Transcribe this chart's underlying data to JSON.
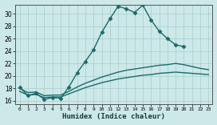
{
  "title": "",
  "xlabel": "Humidex (Indice chaleur)",
  "xlim": [
    -0.5,
    23.5
  ],
  "ylim": [
    15.5,
    31.5
  ],
  "yticks": [
    16,
    18,
    20,
    22,
    24,
    26,
    28,
    30
  ],
  "xticks": [
    0,
    1,
    2,
    3,
    4,
    5,
    6,
    7,
    8,
    9,
    10,
    11,
    12,
    13,
    14,
    15,
    16,
    17,
    18,
    19,
    20,
    21,
    22,
    23
  ],
  "background_color": "#cce8e8",
  "grid_color": "#aacccc",
  "line_color": "#1a6b6b",
  "series": [
    {
      "x": [
        0,
        1,
        2,
        3,
        4,
        5,
        6,
        7,
        8,
        9,
        10,
        11,
        12,
        13,
        14,
        15,
        16,
        17,
        18,
        19,
        20
      ],
      "y": [
        18.2,
        16.8,
        17.2,
        16.2,
        16.5,
        16.4,
        18.2,
        20.5,
        22.3,
        24.2,
        27.0,
        29.2,
        31.2,
        30.8,
        30.2,
        31.4,
        29.0,
        27.2,
        26.0,
        25.0,
        24.7
      ],
      "marker": "D",
      "markersize": 2.5,
      "linewidth": 1.0
    },
    {
      "x": [
        0,
        1,
        2,
        3,
        4,
        5,
        6,
        7,
        8,
        9,
        10,
        11,
        12,
        13,
        14,
        15,
        16,
        17,
        18,
        19,
        20,
        21,
        22,
        23
      ],
      "y": [
        18.0,
        17.3,
        17.4,
        16.8,
        16.9,
        16.9,
        17.5,
        18.2,
        18.8,
        19.3,
        19.8,
        20.2,
        20.6,
        20.9,
        21.1,
        21.3,
        21.5,
        21.7,
        21.8,
        22.0,
        21.8,
        21.5,
        21.2,
        21.0
      ],
      "marker": null,
      "markersize": 0,
      "linewidth": 1.0
    },
    {
      "x": [
        0,
        1,
        2,
        3,
        4,
        5,
        6,
        7,
        8,
        9,
        10,
        11,
        12,
        13,
        14,
        15,
        16,
        17,
        18,
        19,
        20,
        21,
        22,
        23
      ],
      "y": [
        17.5,
        16.9,
        17.0,
        16.5,
        16.6,
        16.6,
        17.1,
        17.6,
        18.1,
        18.5,
        18.9,
        19.2,
        19.5,
        19.7,
        19.9,
        20.1,
        20.2,
        20.4,
        20.5,
        20.6,
        20.5,
        20.4,
        20.3,
        20.2
      ],
      "marker": null,
      "markersize": 0,
      "linewidth": 1.0
    }
  ]
}
